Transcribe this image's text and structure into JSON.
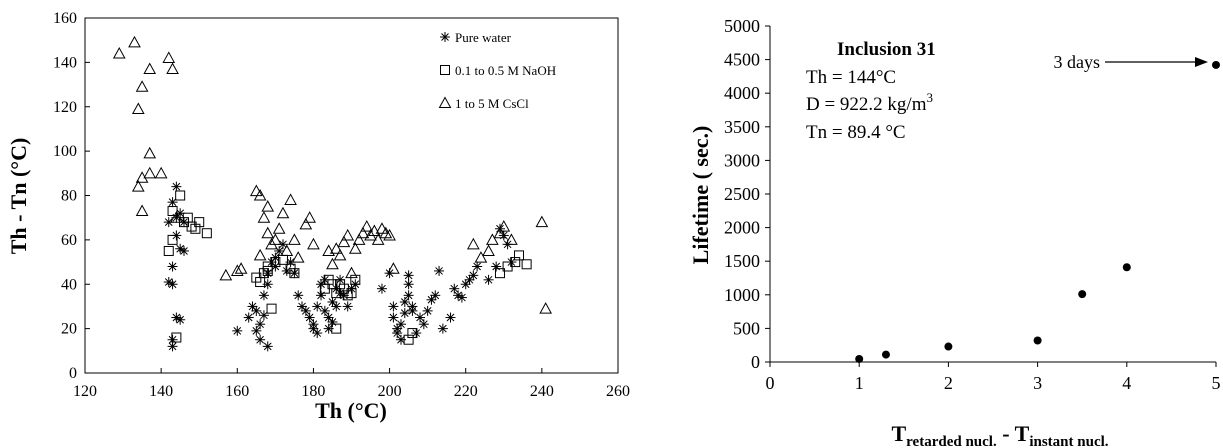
{
  "chart_data": [
    {
      "type": "scatter",
      "title": "",
      "xlabel": "Th (°C)",
      "ylabel": "Th - Tn (°C)",
      "xlim": [
        120,
        260
      ],
      "ylim": [
        0,
        160
      ],
      "xticks": [
        "120",
        "140",
        "160",
        "180",
        "200",
        "220",
        "240",
        "260"
      ],
      "yticks": [
        "0",
        "20",
        "40",
        "60",
        "80",
        "100",
        "120",
        "140",
        "160"
      ],
      "grid": false,
      "legend_position": "top-right",
      "series": [
        {
          "name": "Pure water",
          "marker": "asterisk",
          "points": [
            [
              142,
              41
            ],
            [
              143,
              40
            ],
            [
              143,
              48
            ],
            [
              143,
              12
            ],
            [
              143,
              15
            ],
            [
              144,
              25
            ],
            [
              145,
              24
            ],
            [
              144,
              84
            ],
            [
              144,
              70
            ],
            [
              145,
              72
            ],
            [
              146,
              68
            ],
            [
              145,
              56
            ],
            [
              146,
              55
            ],
            [
              144,
              62
            ],
            [
              143,
              77
            ],
            [
              142,
              68
            ],
            [
              160,
              19
            ],
            [
              163,
              25
            ],
            [
              164,
              30
            ],
            [
              165,
              28
            ],
            [
              165,
              19
            ],
            [
              166,
              15
            ],
            [
              166,
              22
            ],
            [
              167,
              26
            ],
            [
              168,
              12
            ],
            [
              167,
              35
            ],
            [
              168,
              40
            ],
            [
              168,
              45
            ],
            [
              169,
              50
            ],
            [
              170,
              48
            ],
            [
              170,
              52
            ],
            [
              171,
              55
            ],
            [
              172,
              58
            ],
            [
              173,
              46
            ],
            [
              174,
              50
            ],
            [
              175,
              45
            ],
            [
              176,
              35
            ],
            [
              177,
              30
            ],
            [
              178,
              28
            ],
            [
              179,
              25
            ],
            [
              180,
              20
            ],
            [
              180,
              22
            ],
            [
              181,
              18
            ],
            [
              181,
              30
            ],
            [
              182,
              35
            ],
            [
              182,
              40
            ],
            [
              183,
              42
            ],
            [
              183,
              28
            ],
            [
              184,
              25
            ],
            [
              184,
              20
            ],
            [
              185,
              23
            ],
            [
              185,
              32
            ],
            [
              186,
              30
            ],
            [
              186,
              38
            ],
            [
              187,
              36
            ],
            [
              187,
              42
            ],
            [
              188,
              35
            ],
            [
              189,
              30
            ],
            [
              190,
              38
            ],
            [
              191,
              40
            ],
            [
              198,
              38
            ],
            [
              200,
              45
            ],
            [
              201,
              30
            ],
            [
              201,
              25
            ],
            [
              202,
              20
            ],
            [
              202,
              18
            ],
            [
              203,
              15
            ],
            [
              203,
              22
            ],
            [
              204,
              27
            ],
            [
              204,
              32
            ],
            [
              205,
              35
            ],
            [
              205,
              40
            ],
            [
              205,
              44
            ],
            [
              206,
              30
            ],
            [
              206,
              28
            ],
            [
              207,
              18
            ],
            [
              208,
              25
            ],
            [
              209,
              22
            ],
            [
              210,
              28
            ],
            [
              211,
              33
            ],
            [
              212,
              35
            ],
            [
              213,
              46
            ],
            [
              214,
              20
            ],
            [
              216,
              25
            ],
            [
              217,
              38
            ],
            [
              218,
              35
            ],
            [
              219,
              34
            ],
            [
              220,
              40
            ],
            [
              221,
              42
            ],
            [
              222,
              44
            ],
            [
              223,
              48
            ],
            [
              226,
              42
            ],
            [
              229,
              65
            ],
            [
              230,
              62
            ],
            [
              231,
              58
            ],
            [
              232,
              50
            ],
            [
              228,
              48
            ]
          ]
        },
        {
          "name": "0.1 to 0.5 M NaOH",
          "marker": "square",
          "points": [
            [
              142,
              55
            ],
            [
              143,
              60
            ],
            [
              143,
              73
            ],
            [
              144,
              16
            ],
            [
              145,
              80
            ],
            [
              146,
              68
            ],
            [
              147,
              70
            ],
            [
              148,
              66
            ],
            [
              149,
              65
            ],
            [
              150,
              68
            ],
            [
              152,
              63
            ],
            [
              165,
              43
            ],
            [
              166,
              41
            ],
            [
              167,
              45
            ],
            [
              168,
              48
            ],
            [
              168,
              46
            ],
            [
              169,
              29
            ],
            [
              170,
              50
            ],
            [
              172,
              51
            ],
            [
              174,
              47
            ],
            [
              175,
              45
            ],
            [
              183,
              38
            ],
            [
              184,
              42
            ],
            [
              185,
              40
            ],
            [
              186,
              36
            ],
            [
              186,
              20
            ],
            [
              187,
              40
            ],
            [
              188,
              38
            ],
            [
              189,
              35
            ],
            [
              190,
              36
            ],
            [
              191,
              42
            ],
            [
              205,
              15
            ],
            [
              206,
              18
            ],
            [
              229,
              45
            ],
            [
              231,
              48
            ],
            [
              233,
              50
            ],
            [
              234,
              53
            ],
            [
              236,
              49
            ]
          ]
        },
        {
          "name": "1 to 5 M CsCl",
          "marker": "triangle",
          "points": [
            [
              129,
              144
            ],
            [
              133,
              149
            ],
            [
              134,
              119
            ],
            [
              135,
              129
            ],
            [
              137,
              137
            ],
            [
              142,
              142
            ],
            [
              143,
              137
            ],
            [
              134,
              84
            ],
            [
              135,
              88
            ],
            [
              135,
              73
            ],
            [
              137,
              90
            ],
            [
              137,
              99
            ],
            [
              140,
              90
            ],
            [
              144,
              70
            ],
            [
              157,
              44
            ],
            [
              160,
              46
            ],
            [
              161,
              47
            ],
            [
              165,
              82
            ],
            [
              166,
              80
            ],
            [
              166,
              53
            ],
            [
              167,
              70
            ],
            [
              168,
              75
            ],
            [
              168,
              63
            ],
            [
              169,
              58
            ],
            [
              170,
              60
            ],
            [
              171,
              65
            ],
            [
              172,
              72
            ],
            [
              173,
              55
            ],
            [
              174,
              78
            ],
            [
              175,
              60
            ],
            [
              176,
              52
            ],
            [
              178,
              67
            ],
            [
              179,
              70
            ],
            [
              180,
              58
            ],
            [
              184,
              55
            ],
            [
              185,
              49
            ],
            [
              186,
              56
            ],
            [
              187,
              53
            ],
            [
              188,
              59
            ],
            [
              189,
              62
            ],
            [
              190,
              45
            ],
            [
              191,
              56
            ],
            [
              192,
              60
            ],
            [
              193,
              63
            ],
            [
              194,
              66
            ],
            [
              195,
              62
            ],
            [
              196,
              64
            ],
            [
              197,
              60
            ],
            [
              198,
              65
            ],
            [
              199,
              63
            ],
            [
              200,
              62
            ],
            [
              201,
              47
            ],
            [
              222,
              58
            ],
            [
              224,
              52
            ],
            [
              226,
              55
            ],
            [
              227,
              60
            ],
            [
              229,
              63
            ],
            [
              230,
              66
            ],
            [
              232,
              60
            ],
            [
              240,
              68
            ],
            [
              241,
              29
            ]
          ]
        }
      ]
    },
    {
      "type": "scatter",
      "title": "",
      "xlabel": "T<sub>retarded nucl.</sub> - T<sub>instant nucl.</sub>",
      "xlabel_main": "T",
      "xlabel_sub1": "retarded nucl.",
      "xlabel_mid": " - T",
      "xlabel_sub2": "instant nucl.",
      "ylabel": "Lifetime ( sec.)",
      "xlim": [
        0,
        5
      ],
      "ylim": [
        0,
        5000
      ],
      "xticks": [
        "0",
        "1",
        "2",
        "3",
        "4",
        "5"
      ],
      "yticks": [
        "0",
        "500",
        "1000",
        "1500",
        "2000",
        "2500",
        "3000",
        "3500",
        "4000",
        "4500",
        "5000"
      ],
      "grid": false,
      "series": [
        {
          "name": "",
          "marker": "circle",
          "points": [
            [
              1,
              45
            ],
            [
              1.3,
              110
            ],
            [
              2,
              230
            ],
            [
              3,
              320
            ],
            [
              3.5,
              1010
            ],
            [
              4,
              1410
            ],
            [
              5,
              4420
            ]
          ]
        }
      ],
      "annotations": {
        "title": "Inclusion 31",
        "line1": "Th = 144°C",
        "line2_pre": "D = 922.2 kg/m",
        "line2_sup": "3",
        "line3": "Tn = 89.4 °C",
        "arrow_label": "3 days"
      }
    }
  ]
}
